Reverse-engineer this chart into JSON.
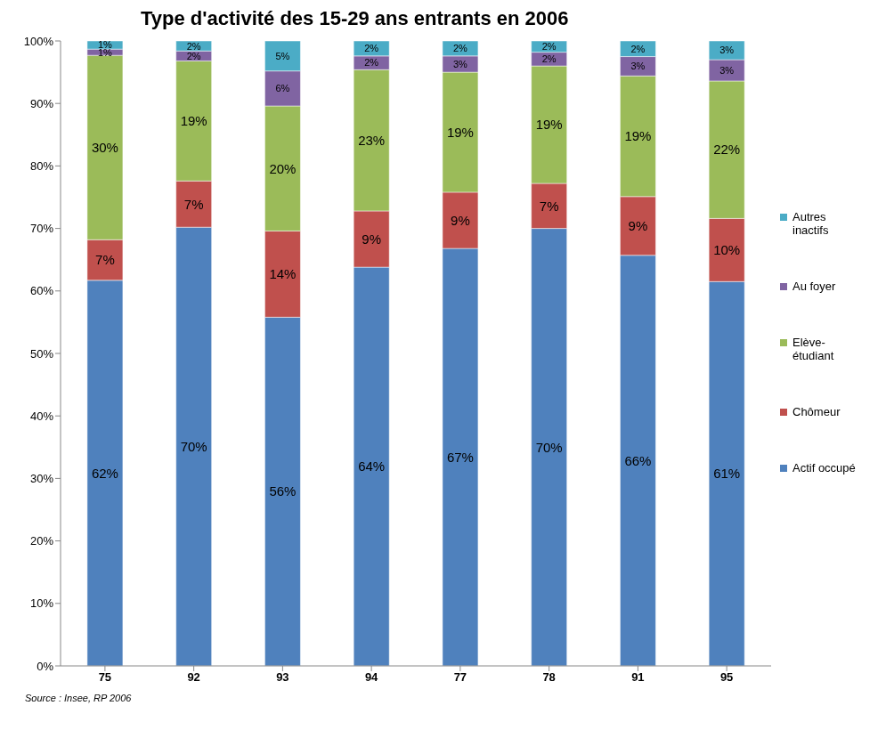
{
  "chart_data": {
    "type": "bar",
    "title": "Type d'activité des 15-29 ans entrants en 2006",
    "stacked": true,
    "categories": [
      "75",
      "92",
      "93",
      "94",
      "77",
      "78",
      "91",
      "95"
    ],
    "series": [
      {
        "name": "Actif occupé",
        "color": "#4f81bd",
        "values": [
          61.7,
          70.2,
          55.8,
          63.8,
          66.8,
          70.0,
          65.7,
          61.5
        ],
        "value_labels": [
          "62%",
          "70%",
          "56%",
          "64%",
          "67%",
          "70%",
          "66%",
          "61%"
        ]
      },
      {
        "name": "Chômeur",
        "color": "#c0504d",
        "values": [
          6.5,
          7.4,
          13.8,
          9.0,
          9.0,
          7.2,
          9.4,
          10.1
        ],
        "value_labels": [
          "7%",
          "7%",
          "14%",
          "9%",
          "9%",
          "7%",
          "9%",
          "10%"
        ]
      },
      {
        "name": "Elève-étudiant",
        "color": "#9bbb59",
        "values": [
          29.5,
          19.2,
          20.0,
          22.6,
          19.2,
          18.8,
          19.3,
          22.0
        ],
        "value_labels": [
          "30%",
          "19%",
          "20%",
          "23%",
          "19%",
          "19%",
          "19%",
          "22%"
        ]
      },
      {
        "name": "Au foyer",
        "color": "#8064a2",
        "values": [
          1.0,
          1.6,
          5.6,
          2.2,
          2.6,
          2.2,
          3.1,
          3.4
        ],
        "value_labels": [
          "1%",
          "2%",
          "6%",
          "2%",
          "3%",
          "2%",
          "3%",
          "3%"
        ]
      },
      {
        "name": "Autres inactifs",
        "color": "#4bacc6",
        "values": [
          1.3,
          1.6,
          4.8,
          2.4,
          2.4,
          1.8,
          2.5,
          3.0
        ],
        "value_labels": [
          "1%",
          "2%",
          "5%",
          "2%",
          "2%",
          "2%",
          "2%",
          "3%"
        ]
      }
    ],
    "ylim": [
      0,
      100
    ],
    "yticks": [
      {
        "value": 0,
        "label": "0%"
      },
      {
        "value": 10,
        "label": "10%"
      },
      {
        "value": 20,
        "label": "20%"
      },
      {
        "value": 30,
        "label": "30%"
      },
      {
        "value": 40,
        "label": "40%"
      },
      {
        "value": 50,
        "label": "50%"
      },
      {
        "value": 60,
        "label": "60%"
      },
      {
        "value": 70,
        "label": "70%"
      },
      {
        "value": 80,
        "label": "80%"
      },
      {
        "value": 90,
        "label": "90%"
      },
      {
        "value": 100,
        "label": "100%"
      }
    ],
    "legend": "right",
    "grid": false,
    "annotations": [
      "Source :  Insee, RP 2006"
    ]
  }
}
